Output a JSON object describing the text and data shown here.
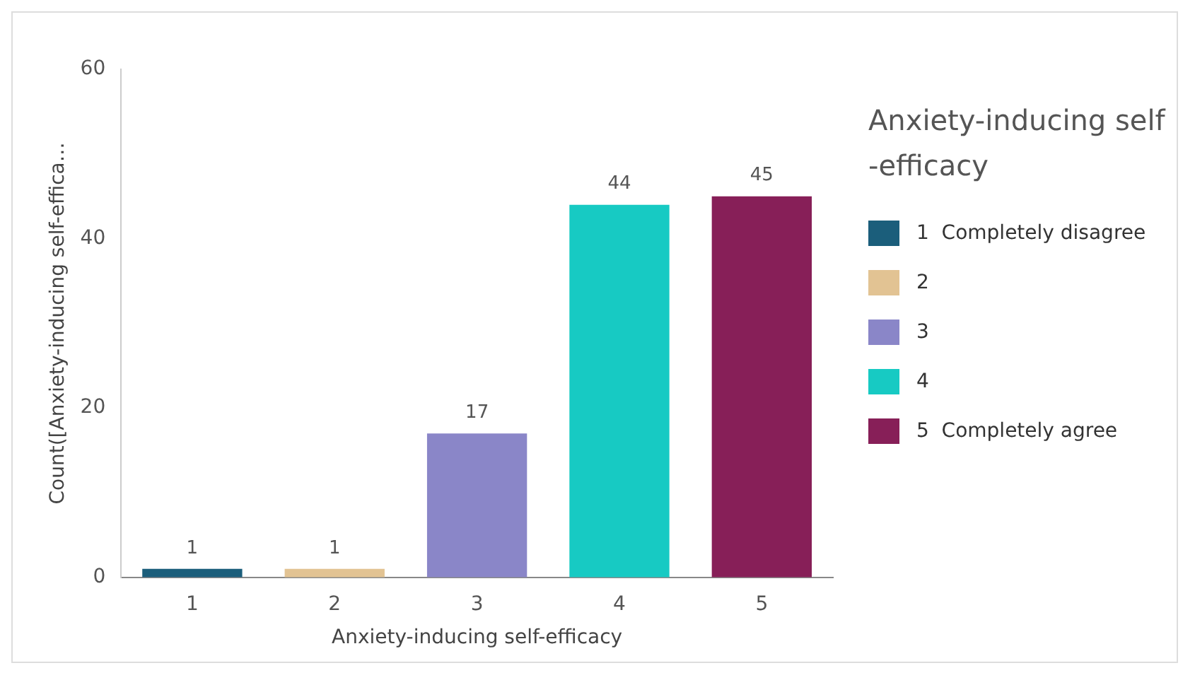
{
  "chart_data": {
    "type": "bar",
    "xlabel": "Anxiety-inducing self-efficacy",
    "ylabel": "Count([Anxiety-inducing self-effica…",
    "legend_title": "Anxiety-inducing self -efficacy",
    "categories": [
      "1",
      "2",
      "3",
      "4",
      "5"
    ],
    "stacked": true,
    "series": [
      {
        "name": "1  Completely disagree",
        "color": "#1b5e7b",
        "values": [
          1,
          null,
          null,
          null,
          null
        ]
      },
      {
        "name": "2",
        "color": "#e2c393",
        "values": [
          null,
          1,
          null,
          null,
          null
        ]
      },
      {
        "name": "3",
        "color": "#8a86c8",
        "values": [
          null,
          null,
          17,
          null,
          null
        ]
      },
      {
        "name": "4",
        "color": "#17cac3",
        "values": [
          null,
          null,
          null,
          44,
          null
        ]
      },
      {
        "name": "5  Completely agree",
        "color": "#871f58",
        "values": [
          null,
          null,
          null,
          null,
          45
        ]
      }
    ],
    "ylim": [
      0,
      60
    ],
    "yticks": [
      0,
      20,
      40,
      60
    ],
    "grid": false,
    "data_labels": true,
    "legend": "right"
  }
}
